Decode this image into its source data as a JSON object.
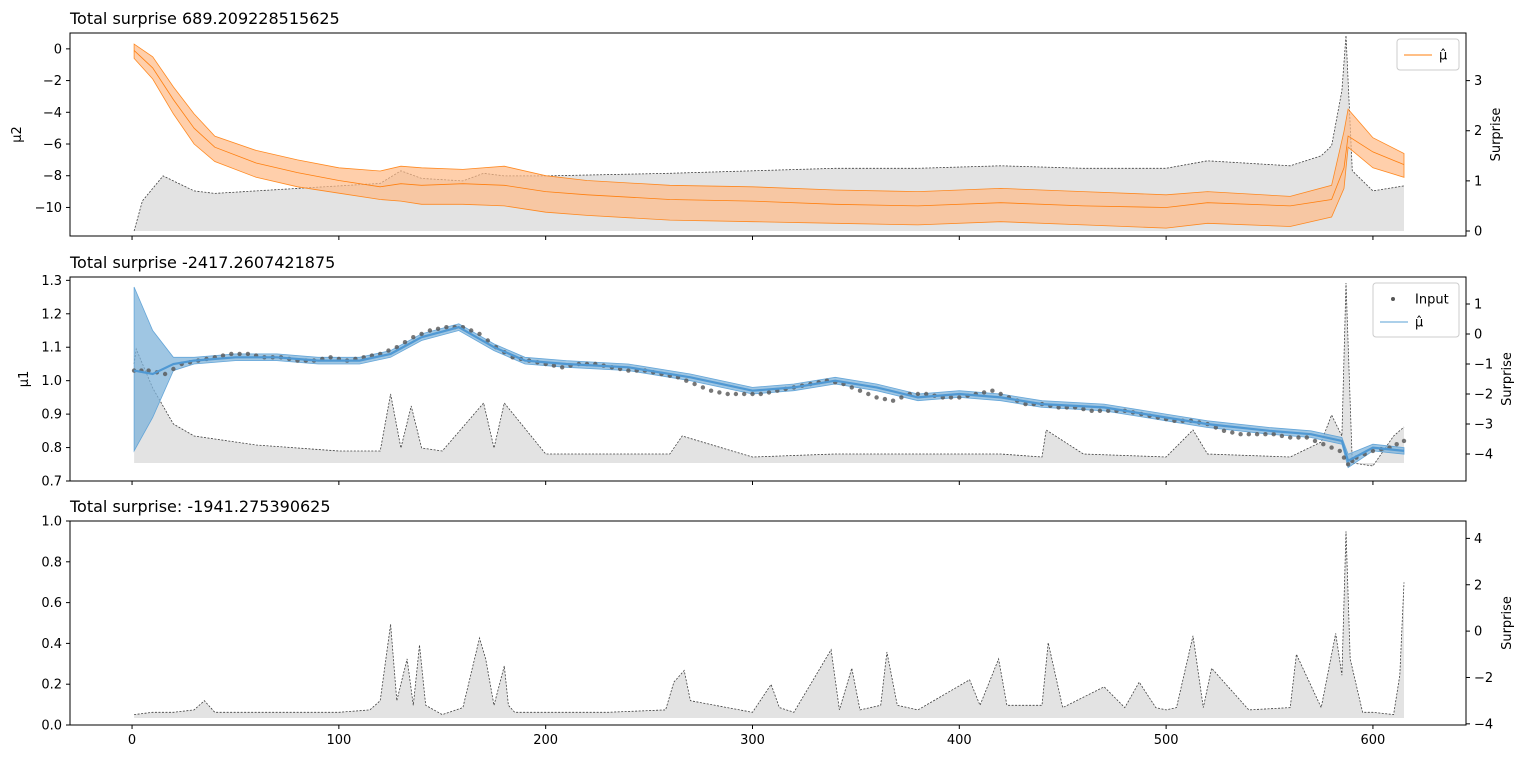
{
  "chart_data": [
    {
      "type": "line",
      "title": "Total surprise 689.209228515625",
      "ylabel_left": "μ2",
      "ylabel_right": "Surprise",
      "xlim": [
        -30,
        645
      ],
      "ylim_left": [
        -11.8,
        1.0
      ],
      "ylim_right": [
        -0.1,
        3.95
      ],
      "yticks_left": [
        0,
        -2,
        -4,
        -6,
        -8,
        -10
      ],
      "yticks_right": [
        0,
        1,
        2,
        3
      ],
      "legend": {
        "position": "top-right",
        "entries": [
          "μ̂"
        ]
      },
      "colors": {
        "series": "#ff7f0e",
        "band": "#ffbb88",
        "surprise_fill": "#d9d9d9",
        "surprise_line": "#404040"
      },
      "series": [
        {
          "name": "μ̂",
          "x": [
            1,
            10,
            20,
            30,
            40,
            60,
            80,
            100,
            120,
            130,
            140,
            160,
            180,
            200,
            220,
            260,
            300,
            340,
            380,
            420,
            460,
            500,
            520,
            560,
            580,
            586,
            588,
            600,
            615
          ],
          "mean": [
            -0.1,
            -1.2,
            -3.2,
            -5.0,
            -6.2,
            -7.2,
            -7.8,
            -8.3,
            -8.7,
            -8.5,
            -8.6,
            -8.5,
            -8.6,
            -9.0,
            -9.2,
            -9.5,
            -9.6,
            -9.8,
            -9.9,
            -9.7,
            -9.9,
            -10.0,
            -9.7,
            -9.9,
            -9.5,
            -7.5,
            -5.5,
            -6.5,
            -7.3
          ],
          "upper": [
            0.3,
            -0.5,
            -2.4,
            -4.1,
            -5.5,
            -6.4,
            -7.0,
            -7.5,
            -7.7,
            -7.4,
            -7.5,
            -7.6,
            -7.4,
            -8.0,
            -8.3,
            -8.6,
            -8.7,
            -8.9,
            -9.0,
            -8.8,
            -9.0,
            -9.2,
            -9.0,
            -9.3,
            -8.6,
            -5.2,
            -3.8,
            -5.6,
            -6.6
          ],
          "lower": [
            -0.6,
            -1.9,
            -4.1,
            -6.0,
            -7.1,
            -8.1,
            -8.7,
            -9.1,
            -9.5,
            -9.6,
            -9.8,
            -9.8,
            -9.9,
            -10.3,
            -10.5,
            -10.8,
            -10.9,
            -11.0,
            -11.1,
            -10.9,
            -11.1,
            -11.3,
            -11.0,
            -11.2,
            -10.6,
            -8.8,
            -6.2,
            -7.5,
            -8.1
          ]
        }
      ],
      "surprise": {
        "x": [
          1,
          5,
          15,
          20,
          30,
          40,
          60,
          80,
          100,
          120,
          130,
          140,
          160,
          170,
          180,
          200,
          260,
          300,
          340,
          380,
          420,
          460,
          500,
          520,
          560,
          575,
          580,
          585,
          587,
          590,
          600,
          615
        ],
        "y": [
          0.0,
          0.6,
          1.1,
          1.0,
          0.8,
          0.75,
          0.8,
          0.85,
          0.9,
          0.95,
          1.2,
          1.05,
          1.0,
          1.15,
          1.1,
          1.1,
          1.15,
          1.2,
          1.25,
          1.25,
          1.3,
          1.25,
          1.25,
          1.4,
          1.3,
          1.5,
          1.7,
          2.8,
          3.9,
          1.2,
          0.8,
          0.9
        ]
      }
    },
    {
      "type": "line",
      "title": "Total surprise -2417.2607421875",
      "ylabel_left": "μ1",
      "ylabel_right": "Surprise",
      "xlim": [
        -30,
        645
      ],
      "ylim_left": [
        0.7,
        1.31
      ],
      "ylim_right": [
        -4.9,
        1.9
      ],
      "yticks_left": [
        1.3,
        1.2,
        1.1,
        1.0,
        0.9,
        0.8,
        0.7
      ],
      "yticks_right": [
        1,
        0,
        -1,
        -2,
        -3,
        -4
      ],
      "legend": {
        "position": "top-right",
        "entries": [
          "Input",
          "μ̂"
        ]
      },
      "colors": {
        "series": "#5aa0d6",
        "band": "#7fb3da",
        "input": "#555555",
        "surprise_fill": "#d9d9d9",
        "surprise_line": "#404040"
      },
      "series": [
        {
          "name": "μ̂",
          "x": [
            1,
            10,
            20,
            30,
            50,
            70,
            90,
            110,
            125,
            140,
            158,
            175,
            190,
            210,
            240,
            270,
            300,
            320,
            340,
            360,
            380,
            400,
            420,
            440,
            470,
            500,
            520,
            550,
            570,
            585,
            588,
            600,
            615
          ],
          "mean": [
            1.03,
            1.02,
            1.05,
            1.06,
            1.07,
            1.07,
            1.06,
            1.06,
            1.08,
            1.13,
            1.16,
            1.1,
            1.06,
            1.05,
            1.04,
            1.01,
            0.97,
            0.98,
            1.0,
            0.98,
            0.95,
            0.96,
            0.95,
            0.93,
            0.92,
            0.89,
            0.87,
            0.85,
            0.84,
            0.82,
            0.76,
            0.8,
            0.79
          ],
          "upper": [
            1.28,
            1.15,
            1.07,
            1.07,
            1.08,
            1.08,
            1.07,
            1.07,
            1.09,
            1.14,
            1.17,
            1.11,
            1.07,
            1.06,
            1.05,
            1.02,
            0.98,
            0.99,
            1.01,
            0.99,
            0.96,
            0.97,
            0.96,
            0.94,
            0.93,
            0.9,
            0.88,
            0.86,
            0.85,
            0.83,
            0.78,
            0.81,
            0.8
          ],
          "lower": [
            0.79,
            0.89,
            1.03,
            1.05,
            1.06,
            1.06,
            1.05,
            1.05,
            1.07,
            1.12,
            1.15,
            1.09,
            1.05,
            1.04,
            1.03,
            1.0,
            0.96,
            0.97,
            0.99,
            0.97,
            0.94,
            0.95,
            0.94,
            0.92,
            0.91,
            0.88,
            0.86,
            0.84,
            0.83,
            0.81,
            0.74,
            0.79,
            0.78
          ]
        }
      ],
      "surprise": {
        "x": [
          1,
          2,
          10,
          20,
          30,
          40,
          60,
          80,
          100,
          120,
          125,
          130,
          135,
          140,
          150,
          170,
          175,
          180,
          200,
          260,
          266,
          300,
          340,
          380,
          420,
          440,
          442,
          460,
          500,
          513,
          520,
          560,
          575,
          580,
          585,
          587,
          590,
          600,
          610,
          615
        ],
        "y": [
          -1.0,
          -0.5,
          -1.8,
          -3.0,
          -3.4,
          -3.5,
          -3.7,
          -3.8,
          -3.9,
          -3.9,
          -2.0,
          -3.8,
          -2.4,
          -3.8,
          -3.9,
          -2.3,
          -3.8,
          -2.3,
          -4.0,
          -4.0,
          -3.4,
          -4.1,
          -4.0,
          -4.0,
          -4.0,
          -4.1,
          -3.2,
          -4.0,
          -4.1,
          -3.2,
          -4.0,
          -4.1,
          -3.6,
          -2.7,
          -3.4,
          1.7,
          -4.3,
          -4.4,
          -3.4,
          -3.1
        ]
      },
      "input": {
        "x": [
          1,
          8,
          16,
          24,
          32,
          40,
          48,
          56,
          64,
          72,
          80,
          88,
          96,
          104,
          112,
          120,
          128,
          136,
          144,
          152,
          160,
          168,
          176,
          184,
          192,
          200,
          208,
          216,
          224,
          232,
          240,
          248,
          256,
          264,
          272,
          280,
          288,
          296,
          304,
          312,
          320,
          328,
          336,
          344,
          352,
          360,
          368,
          376,
          384,
          392,
          400,
          408,
          416,
          424,
          432,
          440,
          448,
          456,
          464,
          472,
          480,
          488,
          496,
          504,
          512,
          520,
          528,
          536,
          544,
          552,
          560,
          568,
          576,
          584,
          588,
          592,
          600,
          608,
          615
        ],
        "y": [
          1.03,
          1.03,
          1.02,
          1.05,
          1.06,
          1.07,
          1.08,
          1.08,
          1.07,
          1.07,
          1.06,
          1.06,
          1.07,
          1.06,
          1.07,
          1.08,
          1.1,
          1.13,
          1.15,
          1.16,
          1.16,
          1.14,
          1.1,
          1.07,
          1.06,
          1.05,
          1.04,
          1.05,
          1.05,
          1.04,
          1.03,
          1.03,
          1.02,
          1.01,
          0.99,
          0.97,
          0.96,
          0.96,
          0.96,
          0.97,
          0.98,
          0.99,
          1.0,
          0.99,
          0.97,
          0.95,
          0.94,
          0.96,
          0.96,
          0.95,
          0.95,
          0.96,
          0.97,
          0.95,
          0.93,
          0.93,
          0.92,
          0.92,
          0.91,
          0.91,
          0.91,
          0.9,
          0.89,
          0.88,
          0.88,
          0.87,
          0.85,
          0.84,
          0.84,
          0.84,
          0.83,
          0.83,
          0.81,
          0.79,
          0.75,
          0.77,
          0.79,
          0.8,
          0.82
        ]
      }
    },
    {
      "type": "area",
      "title": "Total surprise: -1941.275390625",
      "ylabel_right": "Surprise",
      "xlim": [
        -30,
        645
      ],
      "ylim_left": [
        0.0,
        1.0
      ],
      "ylim_right": [
        -4.05,
        4.75
      ],
      "yticks_left": [
        1.0,
        0.8,
        0.6,
        0.4,
        0.2,
        0.0
      ],
      "yticks_right": [
        4,
        2,
        0,
        -2,
        -4
      ],
      "xticks": [
        0,
        100,
        200,
        300,
        400,
        500,
        600
      ],
      "colors": {
        "surprise_fill": "#d9d9d9",
        "surprise_line": "#404040"
      },
      "surprise": {
        "x": [
          1,
          10,
          20,
          30,
          35,
          40,
          60,
          80,
          100,
          115,
          120,
          125,
          128,
          133,
          136,
          139,
          142,
          150,
          160,
          168,
          171,
          175,
          180,
          182,
          185,
          200,
          230,
          258,
          262,
          267,
          270,
          300,
          309,
          313,
          320,
          338,
          342,
          348,
          352,
          362,
          365,
          370,
          380,
          405,
          410,
          419,
          423,
          440,
          443,
          450,
          470,
          480,
          487,
          495,
          500,
          505,
          513,
          518,
          522,
          540,
          560,
          563,
          575,
          580,
          582,
          585,
          587,
          589,
          595,
          600,
          610,
          613,
          615
        ],
        "y": [
          -3.6,
          -3.5,
          -3.5,
          -3.4,
          -3.0,
          -3.5,
          -3.5,
          -3.5,
          -3.5,
          -3.4,
          -3.0,
          0.3,
          -3.0,
          -1.2,
          -3.2,
          -0.6,
          -3.2,
          -3.6,
          -3.3,
          -0.3,
          -1.2,
          -3.2,
          -1.5,
          -3.2,
          -3.5,
          -3.5,
          -3.5,
          -3.4,
          -2.2,
          -1.7,
          -3.0,
          -3.5,
          -2.3,
          -3.3,
          -3.5,
          -0.8,
          -3.4,
          -1.6,
          -3.4,
          -3.2,
          -0.9,
          -3.2,
          -3.4,
          -2.1,
          -3.2,
          -1.2,
          -3.2,
          -3.2,
          -0.5,
          -3.3,
          -2.4,
          -3.3,
          -2.2,
          -3.3,
          -3.4,
          -3.3,
          -0.2,
          -3.3,
          -1.6,
          -3.4,
          -3.3,
          -1.0,
          -3.3,
          -1.0,
          -0.1,
          -1.9,
          4.3,
          -1.2,
          -3.5,
          -3.5,
          -3.6,
          -1.9,
          2.1
        ]
      }
    }
  ]
}
